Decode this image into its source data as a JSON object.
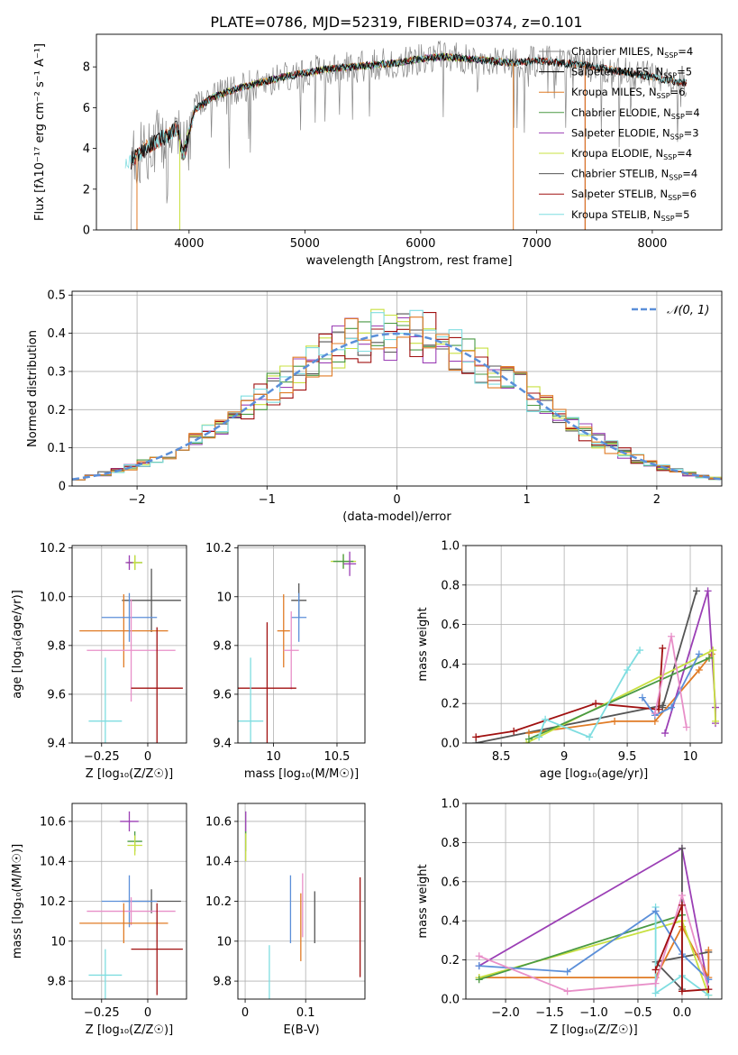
{
  "figure": {
    "title": "PLATE=0786, MJD=52319, FIBERID=0374, z=0.101"
  },
  "chart_data": [
    {
      "id": "spectrum",
      "type": "line",
      "xlabel": "wavelength [Angstrom, rest frame]",
      "ylabel": "Flux [fλ10⁻¹⁷ erg cm⁻² s⁻¹ A⁻¹]",
      "xlim": [
        3200,
        8600
      ],
      "ylim": [
        0,
        9.6
      ],
      "xticks": [
        4000,
        5000,
        6000,
        7000,
        8000
      ],
      "yticks": [
        0,
        2,
        4,
        6,
        8
      ],
      "grid": false,
      "legend_position": "right",
      "continuum_x": [
        3500,
        3600,
        3700,
        3800,
        3900,
        3950,
        4050,
        4200,
        4400,
        4600,
        4800,
        5000,
        5200,
        5400,
        5600,
        5800,
        6000,
        6200,
        6400,
        6600,
        6800,
        7000,
        7200,
        7400,
        7600,
        7800,
        8000,
        8200,
        8300
      ],
      "continuum_y": [
        3.4,
        3.9,
        4.3,
        4.6,
        5.0,
        3.6,
        5.9,
        6.5,
        6.9,
        7.2,
        7.5,
        7.7,
        7.9,
        8.0,
        8.1,
        8.2,
        8.4,
        8.5,
        8.4,
        8.3,
        8.2,
        8.3,
        8.2,
        8.1,
        7.9,
        7.7,
        7.5,
        7.3,
        7.2
      ],
      "series": [
        {
          "name": "Chabrier MILES, N_SSP=4",
          "color": "#808080",
          "x_range": [
            3500,
            8300
          ]
        },
        {
          "name": "Salpeter MILES, N_SSP=5",
          "color": "#000000",
          "x_range": [
            3500,
            8300
          ]
        },
        {
          "name": "Kroupa MILES, N_SSP=6",
          "color": "#e07b25",
          "x_range": [
            3500,
            8300
          ]
        },
        {
          "name": "Chabrier ELODIE, N_SSP=4",
          "color": "#4a9a44",
          "x_range": [
            3900,
            6800
          ]
        },
        {
          "name": "Salpeter ELODIE, N_SSP=3",
          "color": "#9b3fb5",
          "x_range": [
            3900,
            6800
          ]
        },
        {
          "name": "Kroupa ELODIE, N_SSP=4",
          "color": "#c8e040",
          "x_range": [
            3900,
            6800
          ]
        },
        {
          "name": "Chabrier STELIB, N_SSP=4",
          "color": "#555555",
          "x_range": [
            3500,
            8300
          ]
        },
        {
          "name": "Salpeter STELIB, N_SSP=6",
          "color": "#a01010",
          "x_range": [
            3500,
            8300
          ]
        },
        {
          "name": "Kroupa STELIB, N_SSP=5",
          "color": "#7fdde0",
          "x_range": [
            3450,
            8300
          ]
        }
      ]
    },
    {
      "id": "residuals",
      "type": "line",
      "xlabel": "(data-model)/error",
      "ylabel": "Normed distribution",
      "xlim": [
        -2.5,
        2.5
      ],
      "ylim": [
        0,
        0.51
      ],
      "xticks": [
        -2,
        -1,
        0,
        1,
        2
      ],
      "yticks": [
        0.0,
        0.1,
        0.2,
        0.3,
        0.4,
        0.5
      ],
      "grid": true,
      "legend_position": "top-right",
      "legend_label": "𝒩(0, 1)",
      "curve_color": "#5b8fd9",
      "histogram_colors": [
        "#555555",
        "#9b3fb5",
        "#c8e040",
        "#4a9a44",
        "#a01010",
        "#7fdde0",
        "#e07b25"
      ]
    },
    {
      "id": "age-vs-Z",
      "type": "scatter",
      "xlabel": "Z [log₁₀(Z/Z☉)]",
      "ylabel": "age  [log₁₀(age/yr)]",
      "xlim": [
        -0.41,
        0.21
      ],
      "ylim": [
        9.4,
        10.21
      ],
      "xticks": [
        -0.25,
        0.0
      ],
      "ytick_labels": [
        "9.4",
        "9.6",
        "9.8",
        "10.0",
        "10.2"
      ],
      "yticks": [
        9.4,
        9.6,
        9.8,
        10.0,
        10.2
      ],
      "grid": true,
      "points": [
        {
          "x": -0.07,
          "y": 10.14,
          "xerr": 0.04,
          "yerr": 0.03,
          "color": "#4a9a44"
        },
        {
          "x": -0.07,
          "y": 10.14,
          "xerr": 0.04,
          "yerr": 0.03,
          "color": "#c8e040"
        },
        {
          "x": -0.1,
          "y": 10.14,
          "xerr": 0.02,
          "yerr": 0.03,
          "color": "#9b3fb5"
        },
        {
          "x": 0.02,
          "y": 9.985,
          "xerr": 0.16,
          "yerr": 0.13,
          "color": "#555555"
        },
        {
          "x": -0.13,
          "y": 9.86,
          "xerr": 0.24,
          "yerr": 0.15,
          "color": "#e07b25"
        },
        {
          "x": -0.1,
          "y": 9.915,
          "xerr": 0.15,
          "yerr": 0.1,
          "color": "#5b8fd9"
        },
        {
          "x": -0.09,
          "y": 9.78,
          "xerr": 0.24,
          "yerr": 0.21,
          "color": "#e88fc8"
        },
        {
          "x": 0.05,
          "y": 9.625,
          "xerr": 0.14,
          "yerr": 0.25,
          "color": "#a01010"
        },
        {
          "x": -0.23,
          "y": 9.49,
          "xerr": 0.09,
          "yerr": 0.26,
          "color": "#7fdde0"
        }
      ]
    },
    {
      "id": "age-vs-mass",
      "type": "scatter",
      "xlabel": "mass [log₁₀(M/M☉)]",
      "ylabel": "",
      "xlim": [
        9.72,
        10.72
      ],
      "ylim": [
        9.4,
        10.21
      ],
      "xticks": [
        10.0,
        10.5
      ],
      "yticks": [
        9.4,
        9.6,
        9.8,
        10.0,
        10.2
      ],
      "grid": true,
      "points": [
        {
          "x": 10.55,
          "y": 10.145,
          "xerr": 0.1,
          "yerr": 0.03,
          "color": "#c8e040"
        },
        {
          "x": 10.55,
          "y": 10.145,
          "xerr": 0.08,
          "yerr": 0.03,
          "color": "#4a9a44"
        },
        {
          "x": 10.6,
          "y": 10.135,
          "xerr": 0.05,
          "yerr": 0.05,
          "color": "#9b3fb5"
        },
        {
          "x": 10.2,
          "y": 9.985,
          "xerr": 0.06,
          "yerr": 0.07,
          "color": "#555555"
        },
        {
          "x": 10.08,
          "y": 9.86,
          "xerr": 0.05,
          "yerr": 0.15,
          "color": "#e07b25"
        },
        {
          "x": 10.2,
          "y": 9.915,
          "xerr": 0.06,
          "yerr": 0.1,
          "color": "#5b8fd9"
        },
        {
          "x": 10.14,
          "y": 9.78,
          "xerr": 0.06,
          "yerr": 0.16,
          "color": "#e88fc8"
        },
        {
          "x": 9.95,
          "y": 9.625,
          "xerr": 0.23,
          "yerr": 0.27,
          "color": "#a01010"
        },
        {
          "x": 9.82,
          "y": 9.49,
          "xerr": 0.1,
          "yerr": 0.26,
          "color": "#7fdde0"
        }
      ]
    },
    {
      "id": "mass-weight-vs-age",
      "type": "line",
      "xlabel": "age  [log₁₀(age/yr)]",
      "ylabel": "mass weight",
      "xlim": [
        8.22,
        10.25
      ],
      "ylim": [
        0,
        1.0
      ],
      "xticks": [
        8.5,
        9.0,
        9.5,
        10.0
      ],
      "yticks": [
        0.0,
        0.2,
        0.4,
        0.6,
        0.8,
        1.0
      ],
      "grid": true,
      "series": [
        {
          "color": "#555555",
          "x": [
            8.3,
            9.78,
            9.78,
            10.05
          ],
          "y": [
            0.0,
            0.19,
            0.18,
            0.77
          ]
        },
        {
          "color": "#a01010",
          "x": [
            8.3,
            8.6,
            9.25,
            9.75,
            9.78
          ],
          "y": [
            0.03,
            0.06,
            0.2,
            0.17,
            0.48
          ]
        },
        {
          "color": "#e07b25",
          "x": [
            8.72,
            9.4,
            9.72,
            10.07,
            10.17
          ],
          "y": [
            0.05,
            0.11,
            0.11,
            0.37,
            0.45
          ]
        },
        {
          "color": "#9b3fb5",
          "x": [
            9.8,
            10.14,
            10.2,
            10.2
          ],
          "y": [
            0.05,
            0.77,
            0.18,
            0.1
          ]
        },
        {
          "color": "#c8e040",
          "x": [
            8.7,
            10.18,
            10.2
          ],
          "y": [
            0.0,
            0.47,
            0.11
          ]
        },
        {
          "color": "#4a9a44",
          "x": [
            8.72,
            10.15
          ],
          "y": [
            0.02,
            0.43
          ]
        },
        {
          "color": "#7fdde0",
          "x": [
            8.8,
            8.85,
            9.2,
            9.5,
            9.6
          ],
          "y": [
            0.03,
            0.12,
            0.03,
            0.37,
            0.47
          ]
        },
        {
          "color": "#5b8fd9",
          "x": [
            9.62,
            9.72,
            9.85,
            10.07
          ],
          "y": [
            0.23,
            0.14,
            0.18,
            0.45
          ]
        },
        {
          "color": "#e88fc8",
          "x": [
            9.72,
            9.85,
            9.97
          ],
          "y": [
            0.15,
            0.54,
            0.08
          ]
        }
      ]
    },
    {
      "id": "mass-vs-Z",
      "type": "scatter",
      "xlabel": "Z [log₁₀(Z/Z☉)]",
      "ylabel": "mass [log₁₀(M/M☉)]",
      "xlim": [
        -0.41,
        0.21
      ],
      "ylim": [
        9.71,
        10.69
      ],
      "xticks": [
        -0.25,
        0.0
      ],
      "yticks": [
        9.8,
        10.0,
        10.2,
        10.4,
        10.6
      ],
      "grid": true,
      "points": [
        {
          "x": -0.1,
          "y": 10.6,
          "xerr": 0.05,
          "yerr": 0.05,
          "color": "#9b3fb5"
        },
        {
          "x": -0.07,
          "y": 10.5,
          "xerr": 0.04,
          "yerr": 0.05,
          "color": "#4a9a44"
        },
        {
          "x": -0.07,
          "y": 10.48,
          "xerr": 0.04,
          "yerr": 0.05,
          "color": "#c8e040"
        },
        {
          "x": 0.02,
          "y": 10.2,
          "xerr": 0.16,
          "yerr": 0.06,
          "color": "#555555"
        },
        {
          "x": -0.1,
          "y": 10.2,
          "xerr": 0.15,
          "yerr": 0.13,
          "color": "#5b8fd9"
        },
        {
          "x": -0.09,
          "y": 10.15,
          "xerr": 0.24,
          "yerr": 0.07,
          "color": "#e88fc8"
        },
        {
          "x": -0.13,
          "y": 10.09,
          "xerr": 0.24,
          "yerr": 0.1,
          "color": "#e07b25"
        },
        {
          "x": 0.05,
          "y": 9.96,
          "xerr": 0.14,
          "yerr": 0.23,
          "color": "#a01010"
        },
        {
          "x": -0.23,
          "y": 9.83,
          "xerr": 0.09,
          "yerr": 0.13,
          "color": "#7fdde0"
        }
      ]
    },
    {
      "id": "mass-vs-EBV",
      "type": "scatter",
      "xlabel": "E(B-V)",
      "ylabel": "",
      "xlim": [
        -0.012,
        0.198
      ],
      "ylim": [
        9.71,
        10.69
      ],
      "xticks": [
        0.0,
        0.1
      ],
      "yticks": [
        9.8,
        10.0,
        10.2,
        10.4,
        10.6
      ],
      "grid": true,
      "points": [
        {
          "x": 0.001,
          "y": 10.6,
          "yerr": 0.05,
          "color": "#9b3fb5"
        },
        {
          "x": 0.001,
          "y": 10.5,
          "yerr": 0.05,
          "color": "#4a9a44"
        },
        {
          "x": 0.001,
          "y": 10.47,
          "yerr": 0.07,
          "color": "#c8e040"
        },
        {
          "x": 0.075,
          "y": 10.16,
          "yerr": 0.17,
          "color": "#5b8fd9"
        },
        {
          "x": 0.095,
          "y": 10.18,
          "yerr": 0.16,
          "color": "#e88fc8"
        },
        {
          "x": 0.092,
          "y": 10.07,
          "yerr": 0.17,
          "color": "#e07b25"
        },
        {
          "x": 0.115,
          "y": 10.12,
          "yerr": 0.13,
          "color": "#555555"
        },
        {
          "x": 0.19,
          "y": 10.07,
          "yerr": 0.25,
          "color": "#a01010"
        },
        {
          "x": 0.04,
          "y": 9.84,
          "yerr": 0.14,
          "color": "#7fdde0"
        }
      ]
    },
    {
      "id": "mass-weight-vs-Z",
      "type": "line",
      "xlabel": "Z [log₁₀(Z/Z☉)]",
      "ylabel": "mass weight",
      "xlim": [
        -2.45,
        0.45
      ],
      "ylim": [
        0,
        1.0
      ],
      "xticks": [
        -2.0,
        -1.5,
        -1.0,
        -0.5,
        0.0
      ],
      "xtick_labels": [
        "−2.0",
        "−1.5",
        "−1.0",
        "−0.5",
        "0.0"
      ],
      "yticks": [
        0.0,
        0.2,
        0.4,
        0.6,
        0.8,
        1.0
      ],
      "grid": true,
      "series": [
        {
          "color": "#9b3fb5",
          "x": [
            -2.3,
            0.0,
            0.3
          ],
          "y": [
            0.17,
            0.77,
            0.05
          ]
        },
        {
          "color": "#555555",
          "x": [
            0.0,
            0.0,
            -0.3,
            0.3
          ],
          "y": [
            0.77,
            0.05,
            0.19,
            0.24
          ]
        },
        {
          "color": "#e07b25",
          "x": [
            -2.3,
            -0.3,
            0.0,
            0.3,
            0.3
          ],
          "y": [
            0.11,
            0.11,
            0.37,
            0.11,
            0.25
          ]
        },
        {
          "color": "#c8e040",
          "x": [
            -2.3,
            0.0,
            0.3
          ],
          "y": [
            0.11,
            0.4,
            0.02
          ]
        },
        {
          "color": "#4a9a44",
          "x": [
            -2.3,
            0.0
          ],
          "y": [
            0.1,
            0.43
          ]
        },
        {
          "color": "#7fdde0",
          "x": [
            -0.3,
            -0.3,
            0.0,
            0.3
          ],
          "y": [
            0.47,
            0.03,
            0.12,
            0.02
          ]
        },
        {
          "color": "#5b8fd9",
          "x": [
            -2.3,
            -1.3,
            -0.3,
            0.0,
            0.3
          ],
          "y": [
            0.17,
            0.14,
            0.45,
            0.23,
            0.1
          ]
        },
        {
          "color": "#e88fc8",
          "x": [
            -2.3,
            -1.3,
            -0.3,
            0.0,
            0.3
          ],
          "y": [
            0.22,
            0.04,
            0.08,
            0.53,
            0.05
          ]
        },
        {
          "color": "#a01010",
          "x": [
            -0.3,
            0.0,
            0.0,
            0.3
          ],
          "y": [
            0.15,
            0.48,
            0.04,
            0.05
          ]
        }
      ]
    }
  ]
}
